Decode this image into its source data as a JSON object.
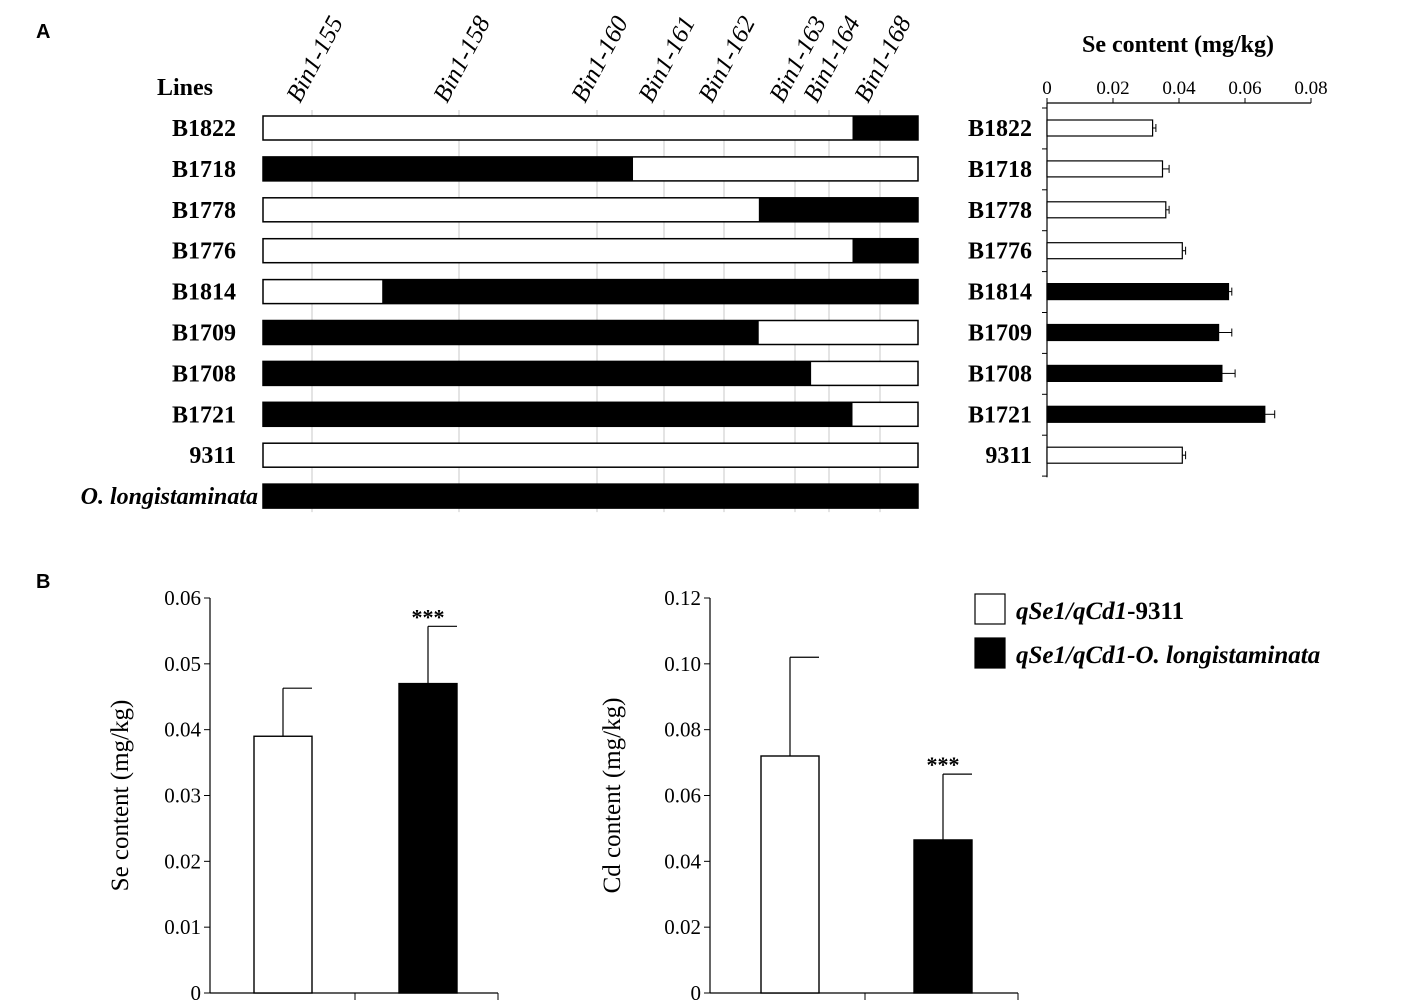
{
  "panel_labels": {
    "a": "A",
    "b": "B"
  },
  "panel_a": {
    "lines_header": "Lines",
    "bin_markers": [
      "Bin1-155",
      "Bin1-158",
      "Bin1-160",
      "Bin1-161",
      "Bin1-162",
      "Bin1-163",
      "Bin1-164",
      "Bin1-168"
    ],
    "colors": {
      "9311": "#ffffff",
      "O. longistaminata": "#000000"
    },
    "genotype_rows": [
      {
        "line": "B1822",
        "segments": [
          {
            "from": 0,
            "to": 0.9,
            "genotype": "9311"
          },
          {
            "from": 0.9,
            "to": 1,
            "genotype": "O. longistaminata"
          }
        ]
      },
      {
        "line": "B1718",
        "segments": [
          {
            "from": 0,
            "to": 0.565,
            "genotype": "O. longistaminata"
          },
          {
            "from": 0.565,
            "to": 1,
            "genotype": "9311"
          }
        ]
      },
      {
        "line": "B1778",
        "segments": [
          {
            "from": 0,
            "to": 0.757,
            "genotype": "9311"
          },
          {
            "from": 0.757,
            "to": 1,
            "genotype": "O. longistaminata"
          }
        ]
      },
      {
        "line": "B1776",
        "segments": [
          {
            "from": 0,
            "to": 0.9,
            "genotype": "9311"
          },
          {
            "from": 0.9,
            "to": 1,
            "genotype": "O. longistaminata"
          }
        ]
      },
      {
        "line": "B1814",
        "segments": [
          {
            "from": 0,
            "to": 0.182,
            "genotype": "9311"
          },
          {
            "from": 0.182,
            "to": 1,
            "genotype": "O. longistaminata"
          }
        ]
      },
      {
        "line": "B1709",
        "segments": [
          {
            "from": 0,
            "to": 0.757,
            "genotype": "O. longistaminata"
          },
          {
            "from": 0.757,
            "to": 1,
            "genotype": "9311"
          }
        ]
      },
      {
        "line": "B1708",
        "segments": [
          {
            "from": 0,
            "to": 0.837,
            "genotype": "O. longistaminata"
          },
          {
            "from": 0.837,
            "to": 1,
            "genotype": "9311"
          }
        ]
      },
      {
        "line": "B1721",
        "segments": [
          {
            "from": 0,
            "to": 0.9,
            "genotype": "O. longistaminata"
          },
          {
            "from": 0.9,
            "to": 1,
            "genotype": "9311"
          }
        ]
      },
      {
        "line": "9311",
        "segments": [
          {
            "from": 0,
            "to": 1,
            "genotype": "9311"
          }
        ]
      },
      {
        "line": "O. longistaminata",
        "segments": [
          {
            "from": 0,
            "to": 1,
            "genotype": "O. longistaminata"
          }
        ]
      }
    ]
  },
  "chart_data": [
    {
      "type": "bar",
      "orientation": "horizontal",
      "title": "Se content (mg/kg)",
      "categories": [
        "B1822",
        "B1718",
        "B1778",
        "B1776",
        "B1814",
        "B1709",
        "B1708",
        "B1721",
        "9311"
      ],
      "values": [
        0.032,
        0.035,
        0.036,
        0.041,
        0.055,
        0.052,
        0.053,
        0.066,
        0.041
      ],
      "errors": [
        0.001,
        0.002,
        0.001,
        0.001,
        0.001,
        0.004,
        0.004,
        0.003,
        0.001
      ],
      "fills": [
        "#ffffff",
        "#ffffff",
        "#ffffff",
        "#ffffff",
        "#000000",
        "#000000",
        "#000000",
        "#000000",
        "#ffffff"
      ],
      "xlim": [
        0,
        0.08
      ],
      "xticks": [
        "0",
        "0.02",
        "0.04",
        "0.06",
        "0.08"
      ]
    },
    {
      "type": "bar",
      "categories": [
        "qSe1/qCd1-9311",
        "qSe1/qCd1-O. longistaminata"
      ],
      "values": [
        0.039,
        0.047
      ],
      "errors": [
        0.0073,
        0.0087
      ],
      "fills": [
        "#ffffff",
        "#000000"
      ],
      "ylabel": "Se content (mg/kg)",
      "ylim": [
        0,
        0.06
      ],
      "yticks": [
        "0",
        "0.01",
        "0.02",
        "0.03",
        "0.04",
        "0.05",
        "0.06"
      ],
      "annotations": [
        {
          "category": "qSe1/qCd1-O. longistaminata",
          "text": "***"
        }
      ]
    },
    {
      "type": "bar",
      "categories": [
        "qSe1/qCd1-9311",
        "qSe1/qCd1-O. longistaminata"
      ],
      "values": [
        0.072,
        0.0465
      ],
      "errors": [
        0.03,
        0.02
      ],
      "fills": [
        "#ffffff",
        "#000000"
      ],
      "ylabel": "Cd content (mg/kg)",
      "ylim": [
        0,
        0.12
      ],
      "yticks": [
        "0",
        "0.02",
        "0.04",
        "0.06",
        "0.08",
        "0.10",
        "0.12"
      ],
      "annotations": [
        {
          "category": "qSe1/qCd1-O. longistaminata",
          "text": "***"
        }
      ]
    }
  ],
  "legend": {
    "placement": "right",
    "items": [
      {
        "prefix": "qSe1/qCd1",
        "suffix": "-9311",
        "fill": "#ffffff"
      },
      {
        "prefix": "qSe1/qCd1-O. longistaminata",
        "suffix": "",
        "fill": "#000000"
      }
    ]
  }
}
